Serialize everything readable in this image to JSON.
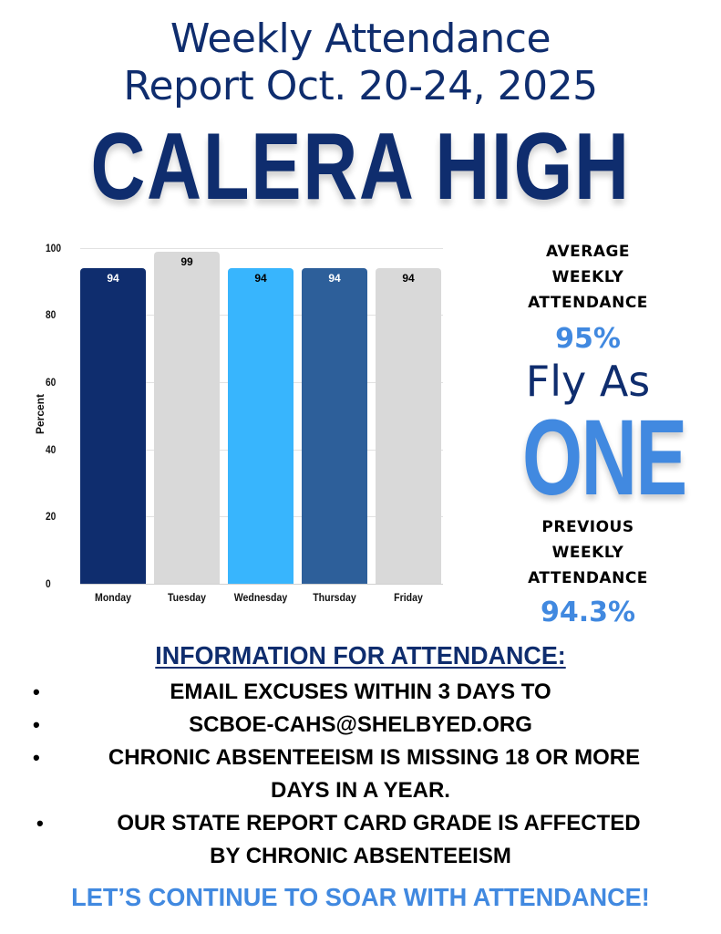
{
  "header": {
    "title_line1": "Weekly Attendance",
    "title_line2": "Report Oct. 20-24, 2025",
    "school": "CALERA HIGH"
  },
  "chart_data": {
    "type": "bar",
    "title": "",
    "xlabel": "",
    "ylabel": "Percent",
    "ylim": [
      0,
      100
    ],
    "yticks": [
      "0",
      "20",
      "40",
      "60",
      "80",
      "100"
    ],
    "grid": true,
    "categories": [
      "Monday",
      "Tuesday",
      "Wednesday",
      "Thursday",
      "Friday"
    ],
    "values": [
      94,
      99,
      94,
      94,
      94
    ],
    "bar_colors": [
      "#0f2d6e",
      "#d9d9d9",
      "#38b5fd",
      "#2d5f9a",
      "#d9d9d9"
    ],
    "label_colors": [
      "#ffffff",
      "#000000",
      "#000000",
      "#ffffff",
      "#000000"
    ],
    "data_labels": [
      "94",
      "99",
      "94",
      "94",
      "94"
    ]
  },
  "sidebar": {
    "avg_heading_lines": [
      "AVERAGE",
      "WEEKLY",
      "ATTENDANCE"
    ],
    "avg_value": "95%",
    "slogan_line1": "Fly As",
    "slogan_line2": "ONE",
    "prev_heading_lines": [
      "PREVIOUS",
      "WEEKLY",
      "ATTENDANCE"
    ],
    "prev_value": "94.3%"
  },
  "info": {
    "heading": "INFORMATION FOR ATTENDANCE:",
    "bullet_char": "•",
    "lines": [
      "EMAIL EXCUSES WITHIN 3 DAYS TO",
      "SCBOE-CAHS@SHELBYED.ORG",
      "CHRONIC ABSENTEEISM IS MISSING 18 OR MORE",
      "DAYS IN A YEAR.",
      "OUR STATE REPORT CARD GRADE IS AFFECTED",
      "BY CHRONIC ABSENTEEISM"
    ]
  },
  "footer": {
    "text": "LET’S CONTINUE TO SOAR WITH ATTENDANCE!"
  },
  "colors": {
    "navy": "#0f2d6e",
    "accent_blue": "#4189e0",
    "sky_blue": "#38b5fd",
    "steel_blue": "#2d5f9a",
    "gray": "#d9d9d9"
  }
}
